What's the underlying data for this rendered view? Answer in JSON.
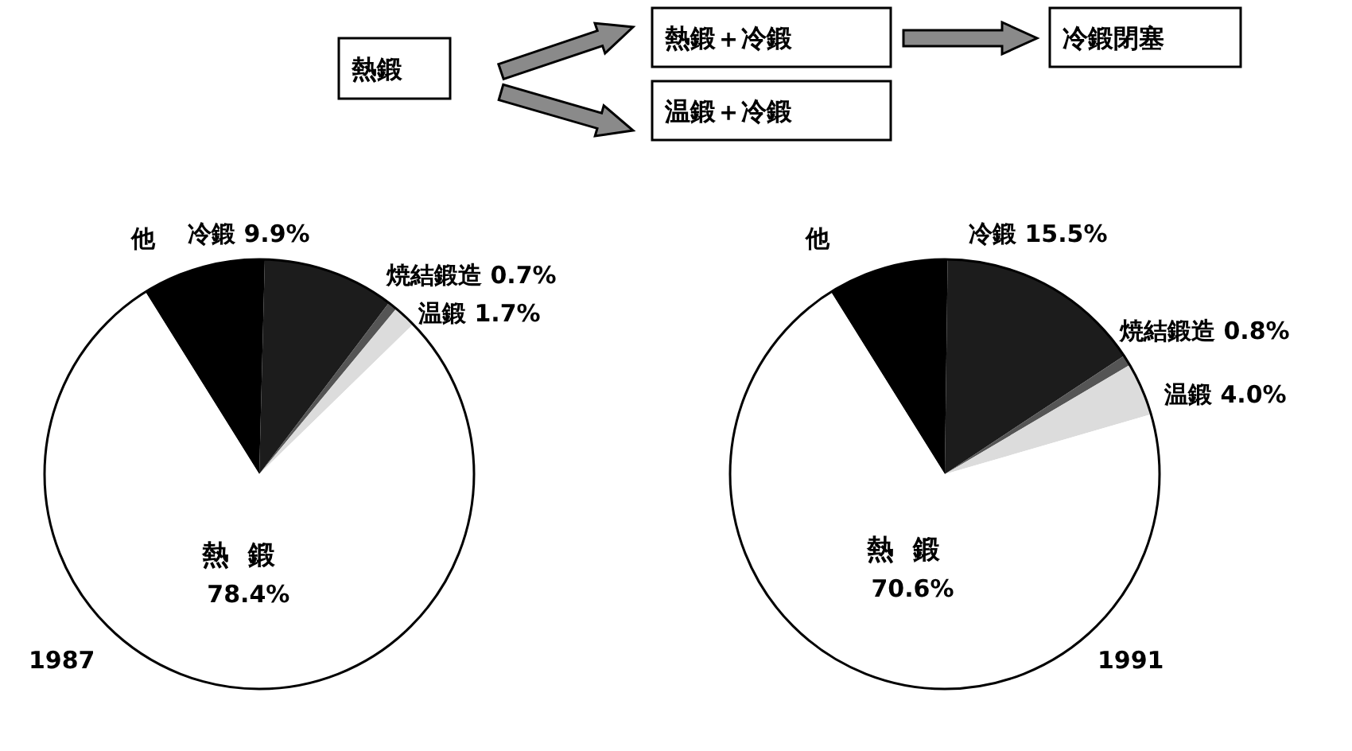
{
  "chart_data": [
    {
      "type": "other",
      "annotations": [
        "熱鍛",
        "熱鍛＋冷鍛",
        "冷鍛閉塞",
        "温鍛＋冷鍛"
      ]
    },
    {
      "type": "pie",
      "title": "1987",
      "categories": [
        "他",
        "冷鍛",
        "焼結鍛造",
        "温鍛",
        "熱鍛"
      ],
      "values": [
        9.3,
        9.9,
        0.7,
        1.7,
        78.4
      ],
      "value_labels": [
        null,
        "9.9%",
        "0.7%",
        "1.7%",
        "78.4%"
      ],
      "colors": [
        "#000000",
        "#1c1c1c",
        "#555555",
        "#dcdcdc",
        "#ffffff"
      ]
    },
    {
      "type": "pie",
      "title": "1991",
      "categories": [
        "他",
        "冷鍛",
        "焼結鍛造",
        "温鍛",
        "熱鍛"
      ],
      "values": [
        9.1,
        15.5,
        0.8,
        4.0,
        70.6
      ],
      "value_labels": [
        null,
        "15.5%",
        "0.8%",
        "4.0%",
        "70.6%"
      ],
      "colors": [
        "#000000",
        "#1c1c1c",
        "#555555",
        "#dcdcdc",
        "#ffffff"
      ]
    }
  ]
}
